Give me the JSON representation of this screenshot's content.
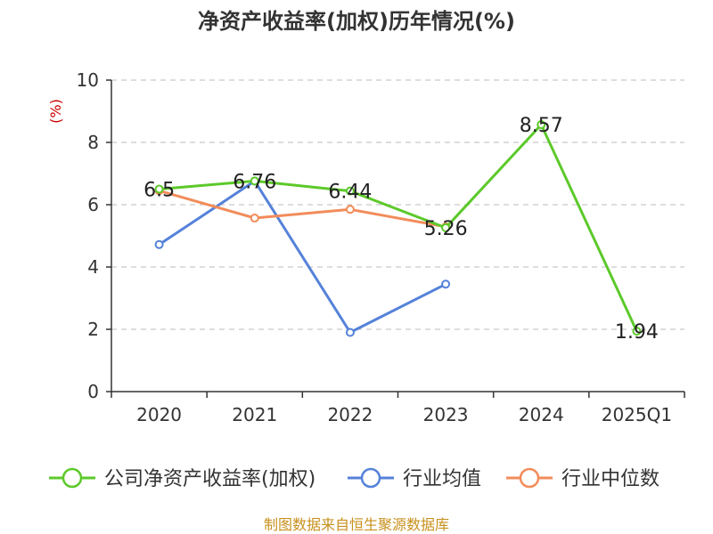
{
  "chart_data": {
    "type": "line",
    "title": "净资产收益率(加权)历年情况(%)",
    "ylabel": "(%)",
    "categories": [
      "2020",
      "2021",
      "2022",
      "2023",
      "2024",
      "2025Q1"
    ],
    "ylim": [
      0,
      10
    ],
    "yticks": [
      "0",
      "2",
      "4",
      "6",
      "8",
      "10"
    ],
    "grid": true,
    "legend_position": "bottom",
    "series": [
      {
        "name": "公司净资产收益率(加权)",
        "color": "#5cc92a",
        "values": [
          6.5,
          6.76,
          6.44,
          5.26,
          8.57,
          1.94
        ],
        "labels": [
          "6.5",
          "6.76",
          "6.44",
          "5.26",
          "8.57",
          "1.94"
        ]
      },
      {
        "name": "行业均值",
        "color": "#5582d9",
        "values": [
          4.72,
          6.76,
          1.9,
          3.45,
          null,
          null
        ]
      },
      {
        "name": "行业中位数",
        "color": "#f28c5a",
        "values": [
          6.45,
          5.57,
          5.85,
          5.29,
          null,
          null
        ]
      }
    ]
  },
  "source": "制图数据来自恒生聚源数据库"
}
